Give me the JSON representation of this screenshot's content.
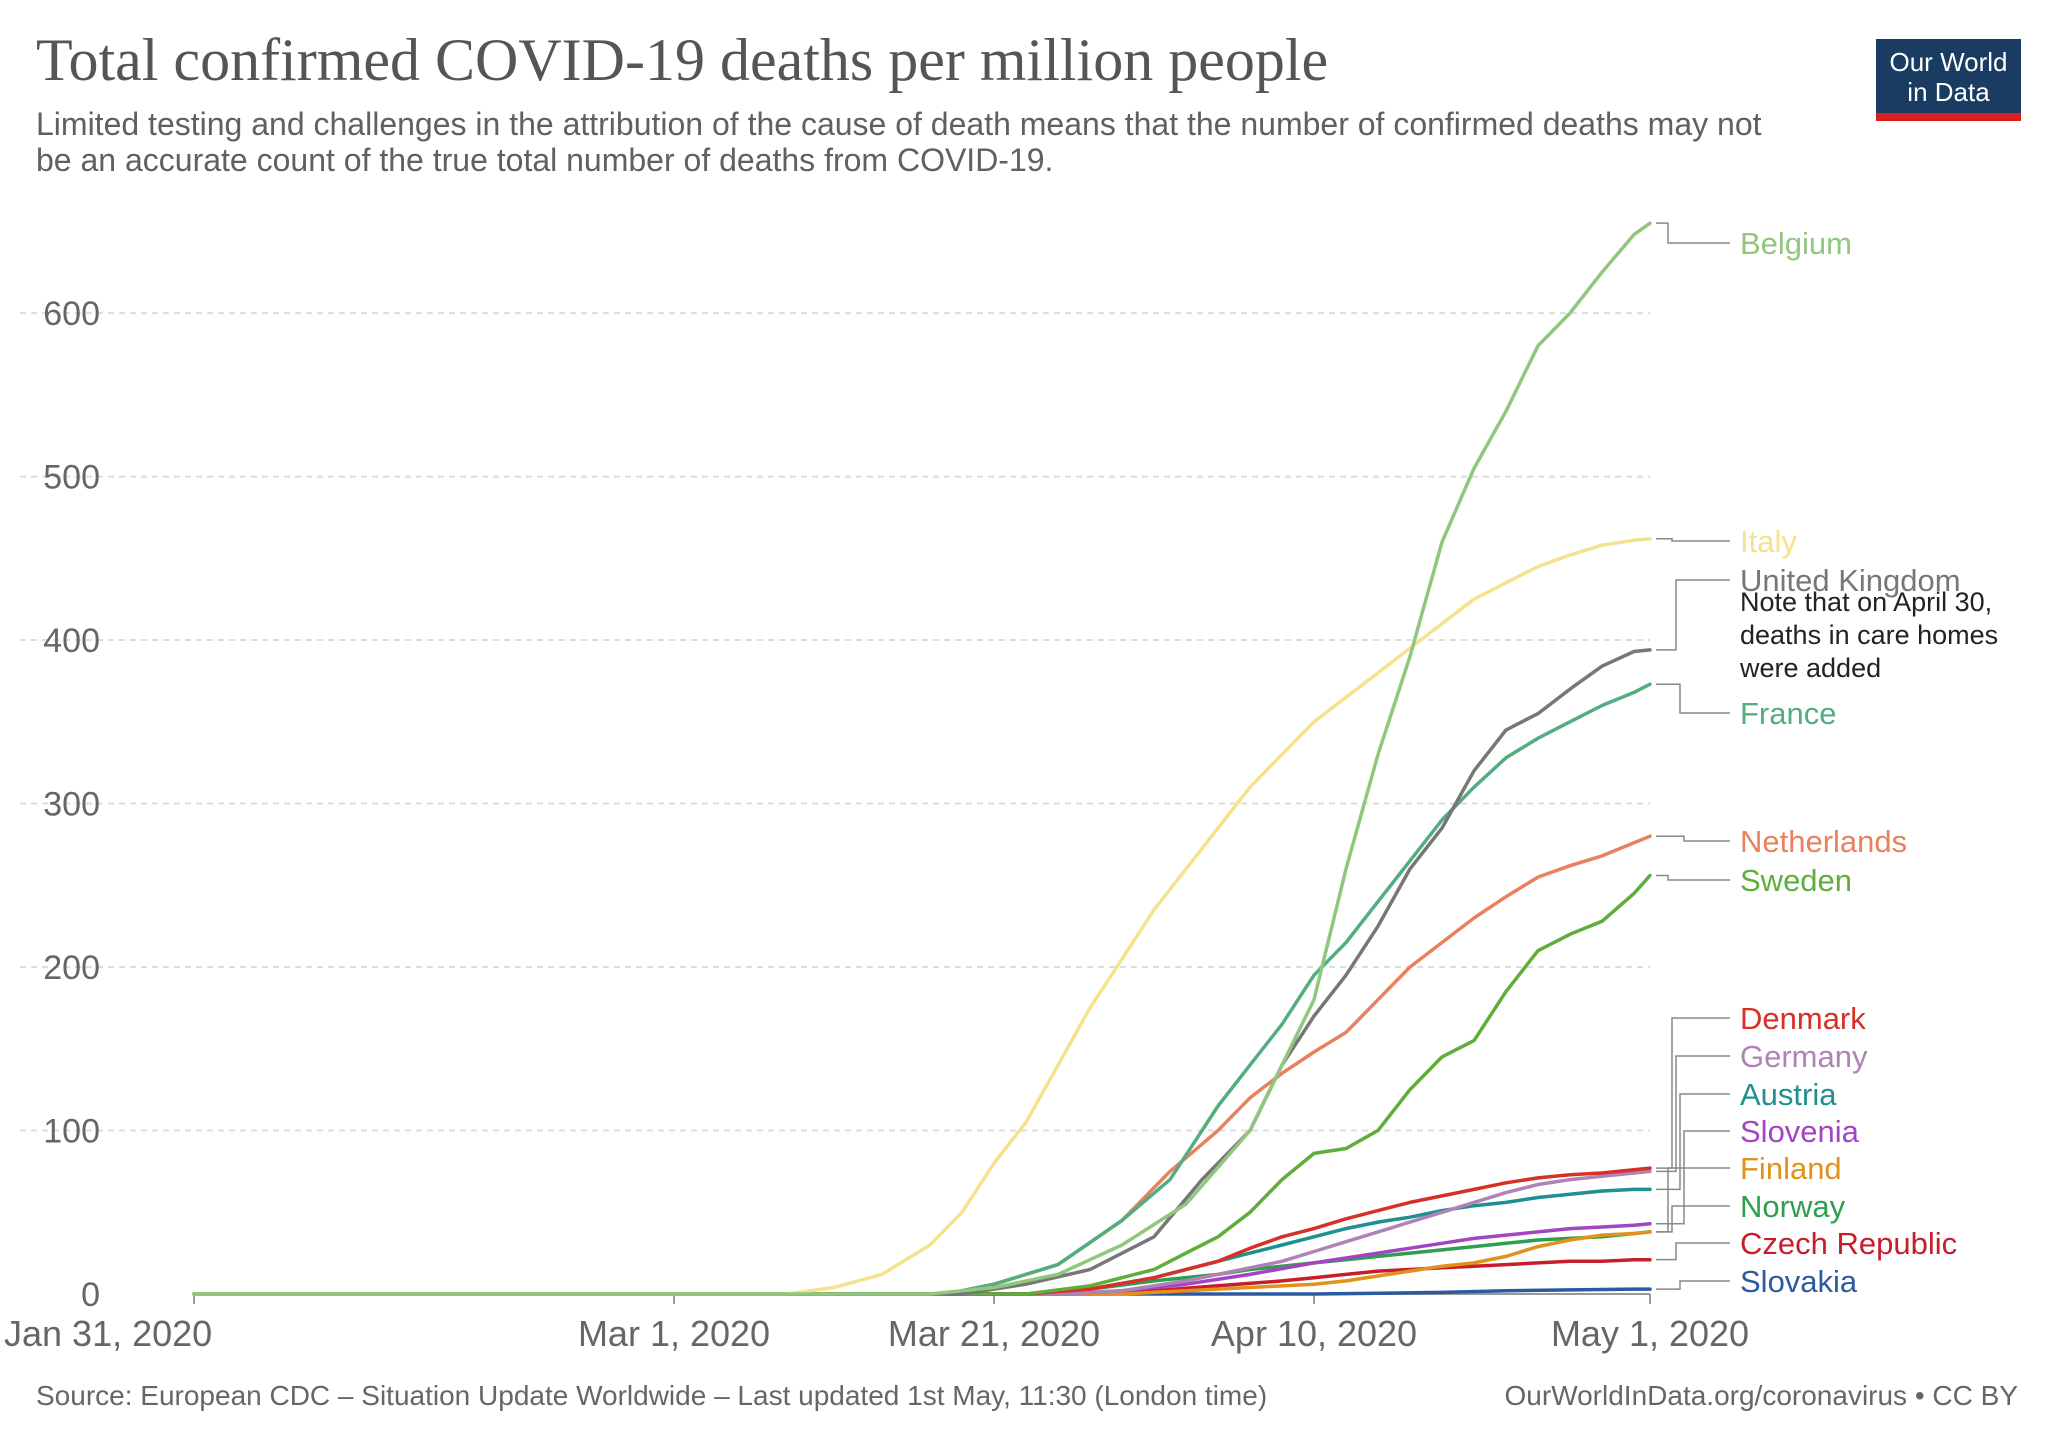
{
  "title": "Total confirmed COVID-19 deaths per million people",
  "subtitle": "Limited testing and challenges in the attribution of the cause of death means that the number of confirmed deaths may not be an accurate count of the true total number of deaths from COVID-19.",
  "logo": {
    "line1": "Our World",
    "line2": "in Data"
  },
  "footer": {
    "source": "Source: European CDC – Situation Update Worldwide – Last updated 1st May, 11:30 (London time)",
    "license": "OurWorldInData.org/coronavirus • CC BY"
  },
  "chart_data": {
    "type": "line",
    "title": "Total confirmed COVID-19 deaths per million people",
    "xlabel": "",
    "ylabel": "",
    "x_start": "Jan 31, 2020",
    "x_end": "May 1, 2020",
    "x_ticks": [
      {
        "day": 0,
        "label": "Jan 31, 2020"
      },
      {
        "day": 30,
        "label": "Mar 1, 2020"
      },
      {
        "day": 50,
        "label": "Mar 21, 2020"
      },
      {
        "day": 70,
        "label": "Apr 10, 2020"
      },
      {
        "day": 91,
        "label": "May 1, 2020"
      }
    ],
    "ylim": [
      0,
      660
    ],
    "y_ticks": [
      0,
      100,
      200,
      300,
      400,
      500,
      600
    ],
    "grid": true,
    "note": [
      "Note that on April 30,",
      "deaths in care homes",
      "were added"
    ],
    "series": [
      {
        "name": "Belgium",
        "color": "#90c77d",
        "points": [
          [
            0,
            0
          ],
          [
            46,
            0
          ],
          [
            50,
            4
          ],
          [
            54,
            12
          ],
          [
            58,
            30
          ],
          [
            62,
            55
          ],
          [
            66,
            100
          ],
          [
            68,
            140
          ],
          [
            70,
            180
          ],
          [
            72,
            260
          ],
          [
            74,
            330
          ],
          [
            76,
            390
          ],
          [
            78,
            460
          ],
          [
            80,
            505
          ],
          [
            82,
            540
          ],
          [
            84,
            580
          ],
          [
            86,
            600
          ],
          [
            88,
            625
          ],
          [
            90,
            648
          ],
          [
            91,
            655
          ]
        ]
      },
      {
        "name": "Italy",
        "color": "#f5e28c",
        "points": [
          [
            0,
            0
          ],
          [
            37,
            0
          ],
          [
            40,
            4
          ],
          [
            43,
            12
          ],
          [
            46,
            30
          ],
          [
            48,
            50
          ],
          [
            50,
            80
          ],
          [
            52,
            105
          ],
          [
            54,
            140
          ],
          [
            56,
            175
          ],
          [
            58,
            205
          ],
          [
            60,
            235
          ],
          [
            62,
            260
          ],
          [
            64,
            285
          ],
          [
            66,
            310
          ],
          [
            68,
            330
          ],
          [
            70,
            350
          ],
          [
            72,
            365
          ],
          [
            74,
            380
          ],
          [
            76,
            395
          ],
          [
            78,
            410
          ],
          [
            80,
            425
          ],
          [
            82,
            435
          ],
          [
            84,
            445
          ],
          [
            86,
            452
          ],
          [
            88,
            458
          ],
          [
            90,
            461
          ],
          [
            91,
            462
          ]
        ]
      },
      {
        "name": "United Kingdom",
        "color": "#777777",
        "points": [
          [
            0,
            0
          ],
          [
            48,
            0
          ],
          [
            52,
            6
          ],
          [
            56,
            15
          ],
          [
            60,
            35
          ],
          [
            63,
            70
          ],
          [
            66,
            100
          ],
          [
            68,
            140
          ],
          [
            70,
            170
          ],
          [
            72,
            195
          ],
          [
            74,
            225
          ],
          [
            76,
            260
          ],
          [
            78,
            285
          ],
          [
            80,
            320
          ],
          [
            82,
            345
          ],
          [
            84,
            355
          ],
          [
            86,
            370
          ],
          [
            88,
            384
          ],
          [
            90,
            393
          ],
          [
            91,
            394
          ]
        ]
      },
      {
        "name": "France",
        "color": "#52ad7f",
        "points": [
          [
            0,
            0
          ],
          [
            47,
            0
          ],
          [
            50,
            6
          ],
          [
            54,
            18
          ],
          [
            58,
            45
          ],
          [
            61,
            70
          ],
          [
            64,
            115
          ],
          [
            66,
            140
          ],
          [
            68,
            165
          ],
          [
            70,
            195
          ],
          [
            72,
            215
          ],
          [
            74,
            240
          ],
          [
            76,
            265
          ],
          [
            78,
            290
          ],
          [
            80,
            310
          ],
          [
            82,
            328
          ],
          [
            84,
            340
          ],
          [
            86,
            350
          ],
          [
            88,
            360
          ],
          [
            90,
            368
          ],
          [
            91,
            373
          ]
        ]
      },
      {
        "name": "Netherlands",
        "color": "#e8825e",
        "points": [
          [
            0,
            0
          ],
          [
            47,
            0
          ],
          [
            50,
            6
          ],
          [
            54,
            18
          ],
          [
            58,
            45
          ],
          [
            61,
            75
          ],
          [
            64,
            100
          ],
          [
            66,
            120
          ],
          [
            68,
            135
          ],
          [
            70,
            148
          ],
          [
            72,
            160
          ],
          [
            74,
            180
          ],
          [
            76,
            200
          ],
          [
            78,
            215
          ],
          [
            80,
            230
          ],
          [
            82,
            243
          ],
          [
            84,
            255
          ],
          [
            86,
            262
          ],
          [
            88,
            268
          ],
          [
            90,
            276
          ],
          [
            91,
            280
          ]
        ]
      },
      {
        "name": "Sweden",
        "color": "#5fae3b",
        "points": [
          [
            0,
            0
          ],
          [
            52,
            0
          ],
          [
            56,
            5
          ],
          [
            60,
            15
          ],
          [
            62,
            25
          ],
          [
            64,
            35
          ],
          [
            66,
            50
          ],
          [
            68,
            70
          ],
          [
            70,
            86
          ],
          [
            72,
            89
          ],
          [
            74,
            100
          ],
          [
            76,
            125
          ],
          [
            78,
            145
          ],
          [
            80,
            155
          ],
          [
            82,
            185
          ],
          [
            84,
            210
          ],
          [
            86,
            220
          ],
          [
            88,
            228
          ],
          [
            90,
            245
          ],
          [
            91,
            256
          ]
        ]
      },
      {
        "name": "Denmark",
        "color": "#d73027",
        "points": [
          [
            0,
            0
          ],
          [
            52,
            0
          ],
          [
            56,
            3
          ],
          [
            60,
            10
          ],
          [
            64,
            20
          ],
          [
            66,
            28
          ],
          [
            68,
            35
          ],
          [
            70,
            40
          ],
          [
            72,
            46
          ],
          [
            74,
            51
          ],
          [
            76,
            56
          ],
          [
            78,
            60
          ],
          [
            80,
            64
          ],
          [
            82,
            68
          ],
          [
            84,
            71
          ],
          [
            86,
            73
          ],
          [
            88,
            74
          ],
          [
            90,
            76
          ],
          [
            91,
            77
          ]
        ]
      },
      {
        "name": "Germany",
        "color": "#b083b6",
        "points": [
          [
            0,
            0
          ],
          [
            54,
            0
          ],
          [
            58,
            2
          ],
          [
            62,
            8
          ],
          [
            66,
            16
          ],
          [
            68,
            20
          ],
          [
            70,
            26
          ],
          [
            72,
            32
          ],
          [
            74,
            38
          ],
          [
            76,
            44
          ],
          [
            78,
            50
          ],
          [
            80,
            56
          ],
          [
            82,
            62
          ],
          [
            84,
            67
          ],
          [
            86,
            70
          ],
          [
            88,
            72
          ],
          [
            90,
            74
          ],
          [
            91,
            75
          ]
        ]
      },
      {
        "name": "Austria",
        "color": "#1f8f8f",
        "points": [
          [
            0,
            0
          ],
          [
            53,
            0
          ],
          [
            56,
            3
          ],
          [
            60,
            10
          ],
          [
            64,
            20
          ],
          [
            66,
            25
          ],
          [
            68,
            30
          ],
          [
            70,
            35
          ],
          [
            72,
            40
          ],
          [
            74,
            44
          ],
          [
            76,
            47
          ],
          [
            78,
            51
          ],
          [
            80,
            54
          ],
          [
            82,
            56
          ],
          [
            84,
            59
          ],
          [
            86,
            61
          ],
          [
            88,
            63
          ],
          [
            90,
            64
          ],
          [
            91,
            64
          ]
        ]
      },
      {
        "name": "Slovenia",
        "color": "#a344c2",
        "points": [
          [
            0,
            0
          ],
          [
            54,
            0
          ],
          [
            58,
            2
          ],
          [
            62,
            6
          ],
          [
            66,
            12
          ],
          [
            70,
            19
          ],
          [
            72,
            22
          ],
          [
            74,
            25
          ],
          [
            76,
            28
          ],
          [
            78,
            31
          ],
          [
            80,
            34
          ],
          [
            82,
            36
          ],
          [
            84,
            38
          ],
          [
            86,
            40
          ],
          [
            88,
            41
          ],
          [
            90,
            42
          ],
          [
            91,
            43
          ]
        ]
      },
      {
        "name": "Finland",
        "color": "#e0921c",
        "points": [
          [
            0,
            0
          ],
          [
            58,
            0
          ],
          [
            62,
            2
          ],
          [
            66,
            4
          ],
          [
            70,
            6
          ],
          [
            72,
            8
          ],
          [
            74,
            11
          ],
          [
            76,
            14
          ],
          [
            78,
            17
          ],
          [
            80,
            19
          ],
          [
            82,
            23
          ],
          [
            84,
            29
          ],
          [
            86,
            33
          ],
          [
            88,
            36
          ],
          [
            90,
            37
          ],
          [
            91,
            38
          ]
        ]
      },
      {
        "name": "Norway",
        "color": "#2f9e4f",
        "points": [
          [
            0,
            0
          ],
          [
            52,
            0
          ],
          [
            56,
            3
          ],
          [
            60,
            8
          ],
          [
            64,
            12
          ],
          [
            66,
            15
          ],
          [
            68,
            17
          ],
          [
            70,
            19
          ],
          [
            72,
            21
          ],
          [
            74,
            23
          ],
          [
            76,
            25
          ],
          [
            78,
            27
          ],
          [
            80,
            29
          ],
          [
            82,
            31
          ],
          [
            84,
            33
          ],
          [
            86,
            34
          ],
          [
            88,
            35
          ],
          [
            90,
            37
          ],
          [
            91,
            38
          ]
        ]
      },
      {
        "name": "Czech Republic",
        "color": "#c81e2c",
        "points": [
          [
            0,
            0
          ],
          [
            56,
            0
          ],
          [
            60,
            2
          ],
          [
            64,
            5
          ],
          [
            68,
            8
          ],
          [
            70,
            10
          ],
          [
            72,
            12
          ],
          [
            74,
            14
          ],
          [
            76,
            15
          ],
          [
            78,
            16
          ],
          [
            80,
            17
          ],
          [
            82,
            18
          ],
          [
            84,
            19
          ],
          [
            86,
            20
          ],
          [
            88,
            20
          ],
          [
            90,
            21
          ],
          [
            91,
            21
          ]
        ]
      },
      {
        "name": "Slovakia",
        "color": "#2b5aa0",
        "points": [
          [
            0,
            0
          ],
          [
            70,
            0
          ],
          [
            74,
            0.5
          ],
          [
            78,
            1
          ],
          [
            82,
            2
          ],
          [
            86,
            2.5
          ],
          [
            90,
            3
          ],
          [
            91,
            3
          ]
        ]
      }
    ]
  }
}
